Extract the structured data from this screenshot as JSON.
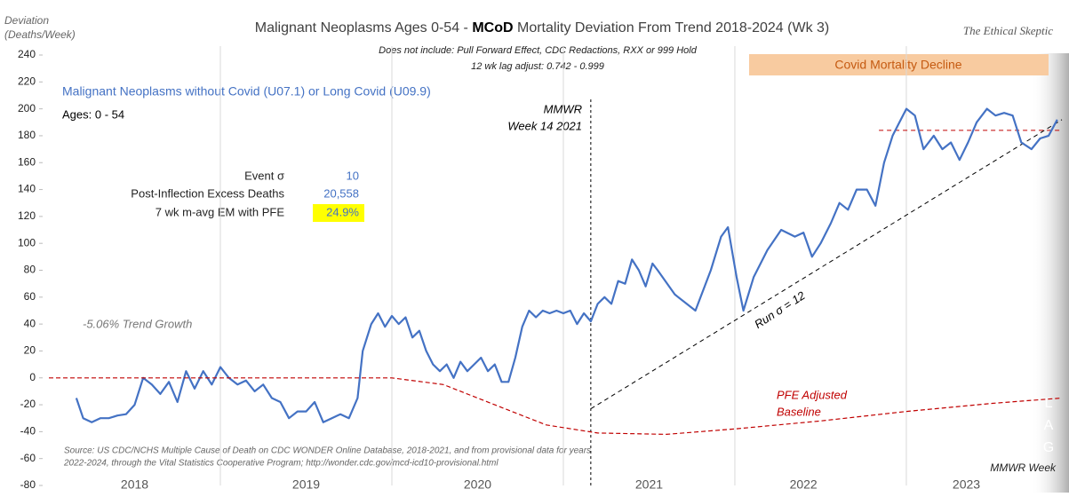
{
  "chart_data": {
    "type": "line",
    "title_parts": [
      "Malignant Neoplasms Ages 0-54 - ",
      "MCoD",
      " Mortality Deviation From Trend  2018-2024 (Wk 3)"
    ],
    "subtitle": [
      "Does not include: Pull Forward Effect,  CDC Redactions, RXX or 999 Hold",
      "12 wk lag adjust: 0.742 - 0.999"
    ],
    "brand": "The Ethical Skeptic",
    "ylabel": [
      "Deviation",
      "(Deaths/Week)"
    ],
    "xlabel": "MMWR Week",
    "ages": "Ages: 0 - 54",
    "stats": [
      {
        "label": "Event σ",
        "value": 10
      },
      {
        "label": "Post-Inflection Excess Deaths",
        "value": 20558,
        "value_label": "20,558"
      },
      {
        "label": "7 wk m-avg EM with PFE",
        "value": 24.9,
        "value_label": "24.9%"
      }
    ],
    "annotations": {
      "trend": "-5.06% Trend Growth",
      "mmwr": [
        "MMWR",
        "Week 14 2021"
      ],
      "run": "Run σ = 12",
      "pfe": [
        "PFE Adjusted",
        "Baseline"
      ],
      "lag": [
        "L",
        "A",
        "G"
      ],
      "decline": "Covid Mortality Decline",
      "source": [
        "Source: US CDC/NCHS Multiple Cause of Death on CDC WONDER Online Database, 2018-2021, and from provisional data for years",
        "2022-2024, through the Vital Statistics Cooperative Program; http://wonder.cdc.gov/mcd-icd10-provisional.html"
      ]
    },
    "xlim": [
      2018,
      2023.907
    ],
    "ylim": [
      -80,
      240
    ],
    "yticks": [
      -80,
      -60,
      -40,
      -20,
      0,
      20,
      40,
      60,
      80,
      100,
      120,
      140,
      160,
      180,
      200,
      220,
      240
    ],
    "xticks": [
      {
        "value": 2018.5,
        "label": "2018"
      },
      {
        "value": 2019.5,
        "label": "2019"
      },
      {
        "value": 2020.5,
        "label": "2020"
      },
      {
        "value": 2021.5,
        "label": "2021"
      },
      {
        "value": 2022.4,
        "label": "2022"
      },
      {
        "value": 2023.35,
        "label": "2023"
      }
    ],
    "x_gridlines": [
      2019,
      2020,
      2021,
      2022,
      2023
    ],
    "vlines": [
      2021.16
    ],
    "series": [
      {
        "name": "Malignant Neoplasms without Covid (U07.1) or Long Covid (U09.9)",
        "color": "#4472c4",
        "x": [
          2018.16,
          2018.2,
          2018.25,
          2018.3,
          2018.35,
          2018.4,
          2018.45,
          2018.5,
          2018.55,
          2018.6,
          2018.65,
          2018.7,
          2018.75,
          2018.8,
          2018.85,
          2018.9,
          2018.95,
          2019.0,
          2019.05,
          2019.1,
          2019.15,
          2019.2,
          2019.25,
          2019.3,
          2019.35,
          2019.4,
          2019.45,
          2019.5,
          2019.55,
          2019.6,
          2019.65,
          2019.7,
          2019.75,
          2019.8,
          2019.83,
          2019.88,
          2019.92,
          2019.96,
          2020.0,
          2020.04,
          2020.08,
          2020.12,
          2020.16,
          2020.2,
          2020.24,
          2020.28,
          2020.32,
          2020.36,
          2020.4,
          2020.44,
          2020.48,
          2020.52,
          2020.56,
          2020.6,
          2020.64,
          2020.68,
          2020.72,
          2020.76,
          2020.8,
          2020.84,
          2020.88,
          2020.92,
          2020.96,
          2021.0,
          2021.04,
          2021.08,
          2021.12,
          2021.16,
          2021.2,
          2021.24,
          2021.28,
          2021.32,
          2021.36,
          2021.4,
          2021.44,
          2021.48,
          2021.52,
          2021.55,
          2021.65,
          2021.77,
          2021.86,
          2021.92,
          2021.96,
          2022.01,
          2022.05,
          2022.11,
          2022.19,
          2022.27,
          2022.35,
          2022.4,
          2022.45,
          2022.5,
          2022.56,
          2022.61,
          2022.66,
          2022.71,
          2022.77,
          2022.82,
          2022.87,
          2022.92,
          2022.96,
          2023.0,
          2023.05,
          2023.1,
          2023.16,
          2023.21,
          2023.26,
          2023.31,
          2023.36,
          2023.41,
          2023.47,
          2023.52,
          2023.57,
          2023.62,
          2023.67,
          2023.73,
          2023.78,
          2023.83,
          2023.88
        ],
        "values": [
          -15,
          -30,
          -33,
          -30,
          -30,
          -28,
          -27,
          -20,
          0,
          -5,
          -12,
          -3,
          -18,
          5,
          -8,
          5,
          -5,
          8,
          0,
          -5,
          -2,
          -10,
          -5,
          -15,
          -18,
          -30,
          -25,
          -25,
          -18,
          -33,
          -30,
          -27,
          -30,
          -15,
          20,
          40,
          48,
          38,
          46,
          40,
          45,
          30,
          35,
          20,
          10,
          5,
          10,
          0,
          12,
          5,
          10,
          15,
          5,
          10,
          -3,
          -3,
          15,
          38,
          50,
          45,
          50,
          48,
          50,
          48,
          50,
          40,
          48,
          42,
          55,
          60,
          55,
          72,
          70,
          88,
          80,
          68,
          85,
          80,
          62,
          50,
          80,
          105,
          112,
          75,
          50,
          75,
          95,
          110,
          105,
          108,
          90,
          100,
          115,
          130,
          125,
          140,
          140,
          128,
          160,
          180,
          190,
          200,
          195,
          170,
          180,
          170,
          175,
          162,
          175,
          190,
          200,
          195,
          197,
          195,
          175,
          170,
          178,
          180,
          192
        ]
      },
      {
        "name": "PFE Adjusted Baseline",
        "color": "#c00000",
        "x": [
          2018.0,
          2020.0,
          2020.3,
          2020.6,
          2020.9,
          2021.2,
          2021.6,
          2022.0,
          2022.5,
          2023.0,
          2023.5,
          2023.907
        ],
        "values": [
          0,
          0,
          -5,
          -20,
          -35,
          -41,
          -42,
          -38,
          -32,
          -25,
          -19,
          -15
        ]
      }
    ],
    "reference_lines": [
      {
        "color": "#000000",
        "x": [
          2021.16,
          2023.907
        ],
        "values": [
          -23,
          192
        ]
      },
      {
        "color": "#c00000",
        "x": [
          2022.84,
          2023.907
        ],
        "values": [
          184,
          184
        ]
      }
    ]
  }
}
